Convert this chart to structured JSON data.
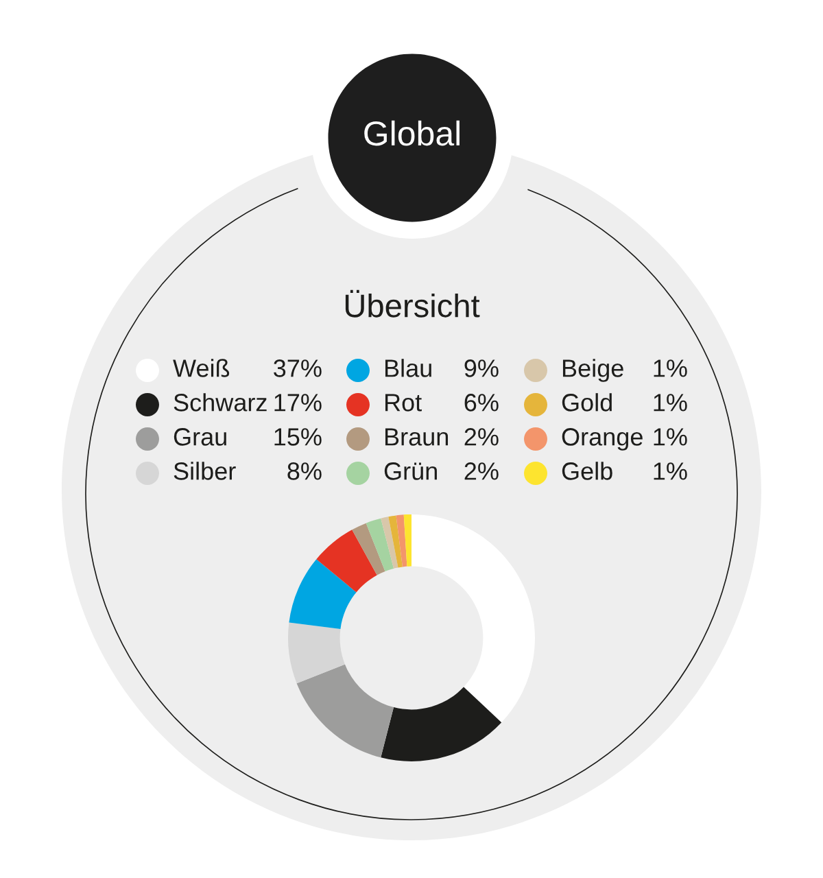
{
  "chart_data": {
    "type": "donut",
    "title": "Global",
    "subtitle": "Übersicht",
    "categories": [
      "Weiß",
      "Schwarz",
      "Grau",
      "Silber",
      "Blau",
      "Rot",
      "Braun",
      "Grün",
      "Beige",
      "Gold",
      "Orange",
      "Gelb"
    ],
    "values": [
      37,
      17,
      15,
      8,
      9,
      6,
      2,
      2,
      1,
      1,
      1,
      1
    ],
    "colors": [
      "#ffffff",
      "#1d1d1b",
      "#9d9d9c",
      "#d6d6d6",
      "#00a6e2",
      "#e53323",
      "#b39a80",
      "#a5d3a1",
      "#d8c7aa",
      "#e5b53b",
      "#f3956b",
      "#fde42f"
    ],
    "value_labels": [
      "37%",
      "17%",
      "15%",
      "8%",
      "9%",
      "6%",
      "2%",
      "2%",
      "1%",
      "1%",
      "1%",
      "1%"
    ],
    "legend": "top"
  }
}
